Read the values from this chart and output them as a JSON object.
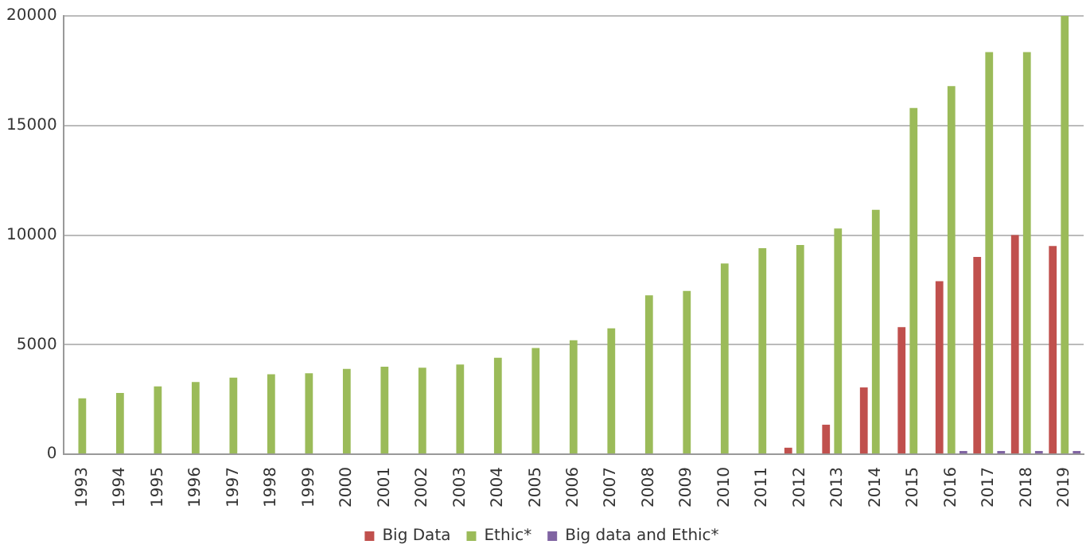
{
  "chart_data": {
    "type": "bar",
    "categories": [
      "1993",
      "1994",
      "1995",
      "1996",
      "1997",
      "1998",
      "1999",
      "2000",
      "2001",
      "2002",
      "2003",
      "2004",
      "2005",
      "2006",
      "2007",
      "2008",
      "2009",
      "2010",
      "2011",
      "2012",
      "2013",
      "2014",
      "2015",
      "2016",
      "2017",
      "2018",
      "2019"
    ],
    "series": [
      {
        "name": "Big Data",
        "color": "#c0504d",
        "values": [
          null,
          null,
          null,
          null,
          null,
          null,
          null,
          null,
          null,
          null,
          null,
          null,
          null,
          null,
          null,
          null,
          null,
          null,
          null,
          300,
          1350,
          3050,
          5800,
          7900,
          9000,
          10000,
          9500
        ]
      },
      {
        "name": "Ethic*",
        "color": "#9bbb59",
        "values": [
          2550,
          2800,
          3100,
          3300,
          3500,
          3650,
          3700,
          3900,
          4000,
          3950,
          4100,
          4400,
          4850,
          5200,
          5750,
          7250,
          7450,
          8700,
          9400,
          9550,
          10300,
          11150,
          15800,
          16800,
          18350,
          18350,
          20000
        ]
      },
      {
        "name": "Big data and Ethic*",
        "color": "#8064a2",
        "values": [
          null,
          null,
          null,
          null,
          null,
          null,
          null,
          null,
          null,
          null,
          null,
          null,
          null,
          null,
          null,
          null,
          null,
          null,
          null,
          null,
          null,
          null,
          null,
          150,
          150,
          150,
          150
        ]
      }
    ],
    "ylim": [
      0,
      20000
    ],
    "yticks": [
      0,
      5000,
      10000,
      15000,
      20000
    ],
    "grid": "y",
    "legend": "bottom"
  }
}
